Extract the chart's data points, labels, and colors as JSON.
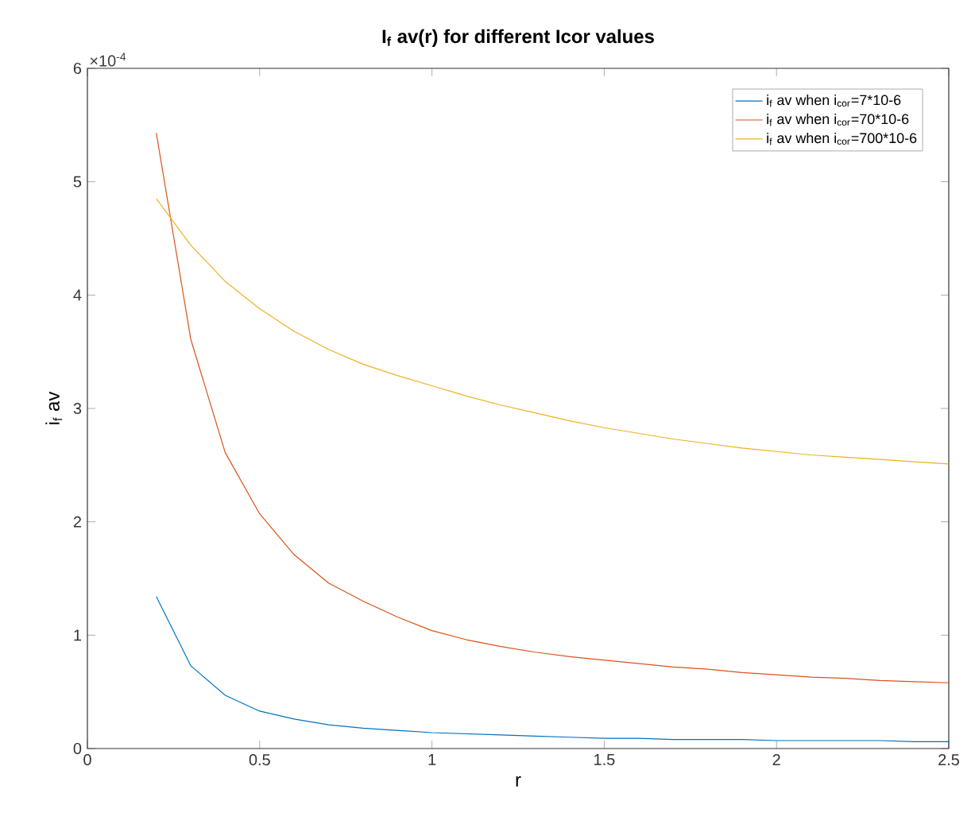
{
  "chart_data": {
    "type": "line",
    "title": "I$_{f}$ av(r) for different Icor values",
    "xlabel": "r",
    "ylabel": "i$_{f}$ av",
    "annotations": [
      "×10$^{-4}$"
    ],
    "x": [
      0.2,
      0.3,
      0.4,
      0.5,
      0.6,
      0.7,
      0.8,
      0.9,
      1.0,
      1.1,
      1.2,
      1.3,
      1.4,
      1.5,
      1.6,
      1.7,
      1.8,
      1.9,
      2.0,
      2.1,
      2.2,
      2.3,
      2.4,
      2.5
    ],
    "series": [
      {
        "name": "i$_{f}$ av when i$_{cor}$=7*10-6",
        "color": "#0072bd",
        "values": [
          1.34,
          0.73,
          0.47,
          0.33,
          0.26,
          0.21,
          0.18,
          0.16,
          0.14,
          0.13,
          0.12,
          0.11,
          0.1,
          0.09,
          0.09,
          0.08,
          0.08,
          0.08,
          0.07,
          0.07,
          0.07,
          0.07,
          0.06,
          0.06
        ]
      },
      {
        "name": "i$_{f}$ av when i$_{cor}$=70*10-6",
        "color": "#d95319",
        "values": [
          5.43,
          3.61,
          2.61,
          2.07,
          1.71,
          1.46,
          1.3,
          1.16,
          1.04,
          0.96,
          0.9,
          0.85,
          0.81,
          0.78,
          0.75,
          0.72,
          0.7,
          0.67,
          0.65,
          0.63,
          0.62,
          0.6,
          0.59,
          0.58
        ]
      },
      {
        "name": "i$_{f}$ av when i$_{cor}$=700*10-6",
        "color": "#edb120",
        "values": [
          4.85,
          4.44,
          4.12,
          3.88,
          3.68,
          3.52,
          3.39,
          3.29,
          3.2,
          3.11,
          3.03,
          2.96,
          2.89,
          2.83,
          2.78,
          2.73,
          2.69,
          2.65,
          2.62,
          2.59,
          2.57,
          2.55,
          2.53,
          2.51
        ]
      }
    ],
    "xlim": [
      0,
      2.5
    ],
    "ylim": [
      0,
      6
    ],
    "xticks": [
      0,
      0.5,
      1,
      1.5,
      2,
      2.5
    ],
    "yticks": [
      0,
      1,
      2,
      3,
      4,
      5,
      6
    ],
    "legend": "top right",
    "grid": false,
    "marker": "none",
    "line_style": "solid"
  }
}
